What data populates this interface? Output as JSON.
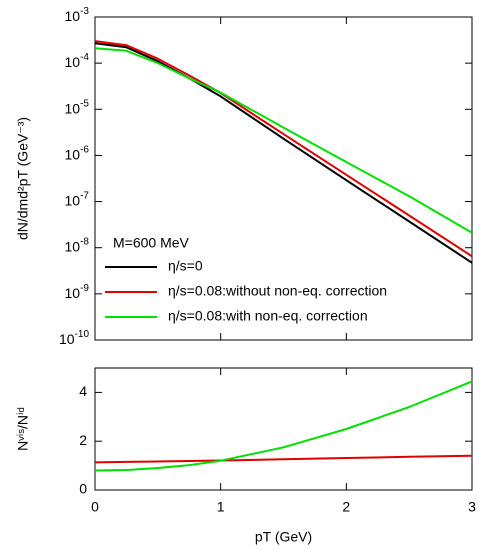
{
  "chart_data": [
    {
      "type": "line",
      "ylabel": "dN/dmd²pT (GeV⁻³)",
      "log_y": true,
      "legend_title": "M=600 MeV",
      "legend": "bottom-left",
      "x": [
        0,
        0.25,
        0.5,
        0.75,
        1,
        1.5,
        2,
        2.5,
        3
      ],
      "xlim": [
        0,
        3
      ],
      "xticks": [
        0,
        1,
        2,
        3
      ],
      "ylim": [
        1e-10,
        0.001
      ],
      "yticks": [
        {
          "value": 0.001,
          "label": "10-3"
        },
        {
          "value": 0.0001,
          "label": "10-4"
        },
        {
          "value": 1e-05,
          "label": "10-5"
        },
        {
          "value": 1e-06,
          "label": "10-6"
        },
        {
          "value": 1e-07,
          "label": "10-7"
        },
        {
          "value": 1e-08,
          "label": "10-8"
        },
        {
          "value": 1e-09,
          "label": "10-9"
        },
        {
          "value": 1e-10,
          "label": "10-10"
        }
      ],
      "series": [
        {
          "name": "η/s=0",
          "color": "#000000",
          "values": [
            0.00027,
            0.00022,
            0.00011,
            4.7e-05,
            1.9e-05,
            2.3e-06,
            2.9e-07,
            3.7e-08,
            4.7e-09
          ]
        },
        {
          "name": "η/s=0.08:without non-eq. correction",
          "color": "#e00000",
          "values": [
            0.0003,
            0.000245,
            0.000125,
            5.4e-05,
            2.25e-05,
            2.9e-06,
            3.8e-07,
            5e-08,
            6.5e-09
          ]
        },
        {
          "name": "η/s=0.08:with non-eq. correction",
          "color": "#00e000",
          "values": [
            0.00021,
            0.000185,
            0.0001,
            4.7e-05,
            2.3e-05,
            4e-06,
            7.2e-07,
            1.3e-07,
            2.1e-08
          ]
        }
      ]
    },
    {
      "type": "line",
      "ylabel": "Nᵛⁱˢ/Nⁱᵈ",
      "xlabel": "pT (GeV)",
      "x": [
        0,
        0.25,
        0.5,
        0.75,
        1,
        1.5,
        2,
        2.5,
        3
      ],
      "xlim": [
        0,
        3
      ],
      "xticks": [
        0,
        1,
        2,
        3
      ],
      "ylim": [
        0,
        5
      ],
      "yticks": [
        0,
        2,
        4
      ],
      "series": [
        {
          "color": "#e00000",
          "values": [
            1.13,
            1.15,
            1.17,
            1.19,
            1.21,
            1.26,
            1.31,
            1.36,
            1.4
          ]
        },
        {
          "color": "#00e000",
          "values": [
            0.8,
            0.82,
            0.9,
            1.02,
            1.2,
            1.75,
            2.5,
            3.4,
            4.45
          ]
        }
      ]
    }
  ]
}
